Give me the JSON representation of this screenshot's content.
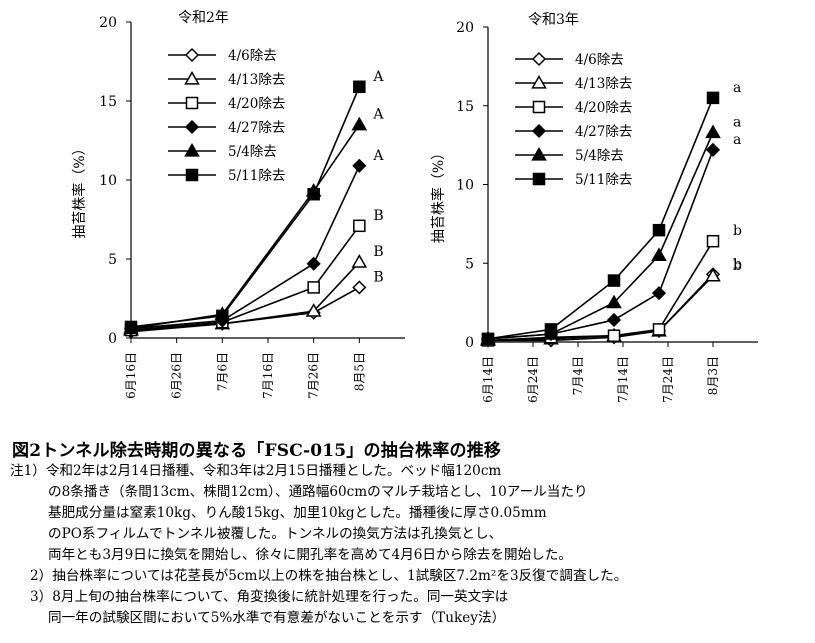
{
  "figure": {
    "caption_title": "図2トンネル除去時期の異なる「FSC-015」の抽台株率の推移",
    "notes": [
      "注1）令和2年は2月14日播種、令和3年は2月15日播種とした。ベッド幅120cm",
      "の8条播き（条間13cm、株間12cm）、通路幅60cmのマルチ栽培とし、10アール当たり",
      "基肥成分量は窒素10kg、りん酸15kg、加里10kgとした。播種後に厚さ0.05mm",
      "のPO系フィルムでトンネル被覆した。トンネルの換気方法は孔換気とし、",
      "両年とも3月9日に換気を開始し、徐々に開孔率を高めて4月6日から除去を開始した。",
      "2）抽台株率については花茎長が5cm以上の株を抽台株とし、1試験区7.2m²を3反復で調査した。",
      "3）8月上旬の抽台株率について、角変換後に統計処理を行った。同一英文字は",
      "同一年の試験区間において5%水準で有意差がないことを示す（Tukey法）"
    ]
  },
  "chart_data": [
    {
      "type": "line",
      "title": "令和2年",
      "ylabel": "抽苔株率（%）",
      "ylim": [
        0,
        20
      ],
      "yticks": [
        "0",
        "5",
        "10",
        "15",
        "20"
      ],
      "xlim": [
        0,
        60
      ],
      "xticks": [
        {
          "v": 0,
          "label": "6月16日"
        },
        {
          "v": 10,
          "label": "6月26日"
        },
        {
          "v": 20,
          "label": "7月6日"
        },
        {
          "v": 30,
          "label": "7月16日"
        },
        {
          "v": 40,
          "label": "7月26日"
        },
        {
          "v": 50,
          "label": "8月5日"
        }
      ],
      "x": [
        0,
        20,
        40,
        50
      ],
      "series": [
        {
          "name": "4/6除去",
          "marker": "diamond-open",
          "values": [
            0.4,
            0.9,
            1.6,
            3.2
          ],
          "sig": "B"
        },
        {
          "name": "4/13除去",
          "marker": "triangle-open",
          "values": [
            0.5,
            0.9,
            1.7,
            4.8
          ],
          "sig": "B"
        },
        {
          "name": "4/20除去",
          "marker": "square-open",
          "values": [
            0.5,
            1.0,
            3.2,
            7.1
          ],
          "sig": "B"
        },
        {
          "name": "4/27除去",
          "marker": "diamond-filled",
          "values": [
            0.6,
            1.1,
            4.7,
            10.9
          ],
          "sig": "A"
        },
        {
          "name": "5/4除去",
          "marker": "triangle-filled",
          "values": [
            0.6,
            1.5,
            9.3,
            13.5
          ],
          "sig": "A"
        },
        {
          "name": "5/11除去",
          "marker": "square-filled",
          "values": [
            0.7,
            1.4,
            9.1,
            15.9
          ],
          "sig": "A"
        }
      ]
    },
    {
      "type": "line",
      "title": "令和3年",
      "ylabel": "抽苔株率（%）",
      "ylim": [
        0,
        20
      ],
      "yticks": [
        "0",
        "5",
        "10",
        "15",
        "20"
      ],
      "xlim": [
        0,
        60
      ],
      "xticks": [
        {
          "v": 0,
          "label": "6月14日"
        },
        {
          "v": 10,
          "label": "6月24日"
        },
        {
          "v": 20,
          "label": "7月4日"
        },
        {
          "v": 30,
          "label": "7月14日"
        },
        {
          "v": 40,
          "label": "7月24日"
        },
        {
          "v": 50,
          "label": "8月3日"
        }
      ],
      "x": [
        0,
        14,
        28,
        38,
        50
      ],
      "series": [
        {
          "name": "4/6除去",
          "marker": "diamond-open",
          "values": [
            0.1,
            0.1,
            0.3,
            0.7,
            4.3
          ],
          "sig": "b"
        },
        {
          "name": "4/13除去",
          "marker": "triangle-open",
          "values": [
            0.1,
            0.2,
            0.4,
            0.7,
            4.2
          ],
          "sig": "b"
        },
        {
          "name": "4/20除去",
          "marker": "square-open",
          "values": [
            0.1,
            0.3,
            0.4,
            0.8,
            6.4
          ],
          "sig": "b"
        },
        {
          "name": "4/27除去",
          "marker": "diamond-filled",
          "values": [
            0.2,
            0.5,
            1.4,
            3.1,
            12.2
          ],
          "sig": "a"
        },
        {
          "name": "5/4除去",
          "marker": "triangle-filled",
          "values": [
            0.2,
            0.5,
            2.5,
            5.5,
            13.3
          ],
          "sig": "a"
        },
        {
          "name": "5/11除去",
          "marker": "square-filled",
          "values": [
            0.2,
            0.8,
            3.9,
            7.1,
            15.5
          ],
          "sig": "a"
        }
      ]
    }
  ]
}
